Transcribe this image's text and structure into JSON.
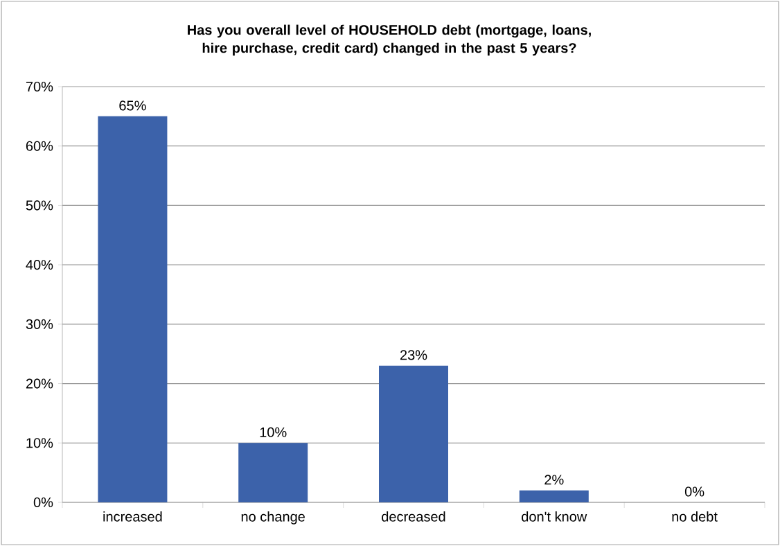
{
  "chart_data": {
    "type": "bar",
    "title": "Has you overall level of HOUSEHOLD debt (mortgage, loans, hire purchase, credit card) changed in the past 5 years?",
    "categories": [
      "increased",
      "no change",
      "decreased",
      "don't know",
      "no debt"
    ],
    "values": [
      65,
      10,
      23,
      2,
      0
    ],
    "value_labels": [
      "65%",
      "10%",
      "23%",
      "2%",
      "0%"
    ],
    "color": "#3c62aa",
    "ylim": [
      0,
      70
    ],
    "yticks": [
      {
        "value": 0,
        "label": "0%"
      },
      {
        "value": 10,
        "label": "10%"
      },
      {
        "value": 20,
        "label": "20%"
      },
      {
        "value": 30,
        "label": "30%"
      },
      {
        "value": 40,
        "label": "40%"
      },
      {
        "value": 50,
        "label": "50%"
      },
      {
        "value": 60,
        "label": "60%"
      },
      {
        "value": 70,
        "label": "70%"
      }
    ],
    "grid": "y"
  }
}
